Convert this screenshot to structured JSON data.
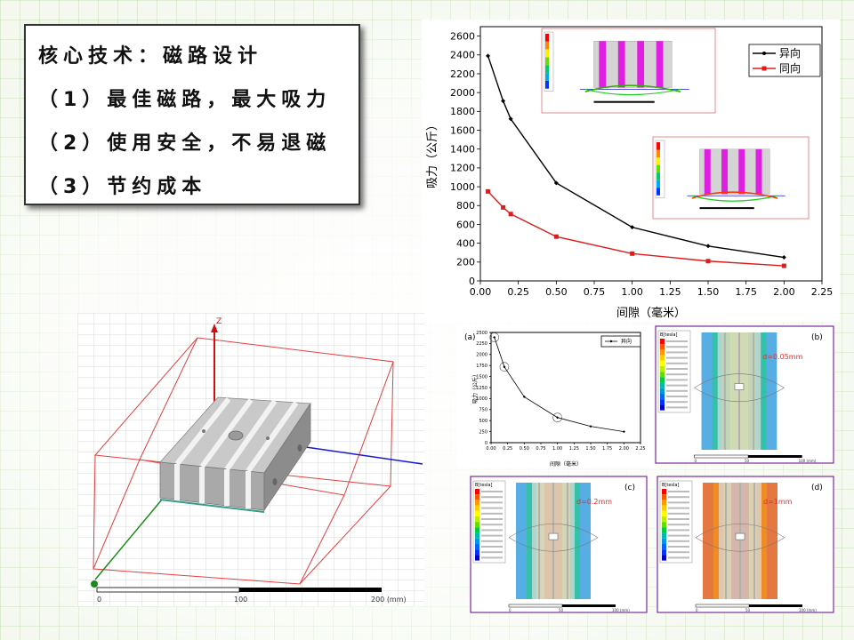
{
  "text_box": {
    "lines": [
      "核心技术：磁路设计",
      "（1）最佳磁路，最大吸力",
      "（2）使用安全，不易退磁",
      "（3）节约成本"
    ]
  },
  "colors": {
    "series_1": "#000000",
    "series_2": "#dd1c1c",
    "axis_blue": "#1a1acc",
    "box_red": "#e04040"
  },
  "chart_data": [
    {
      "type": "line",
      "xlabel": "间隙（毫米）",
      "ylabel": "吸力（公斤）",
      "xlim": [
        0,
        2.25
      ],
      "ylim": [
        0,
        2700
      ],
      "x_ticks": [
        "0.00",
        "0.25",
        "0.50",
        "0.75",
        "1.00",
        "1.25",
        "1.50",
        "1.75",
        "2.00",
        "2.25"
      ],
      "y_ticks": [
        "0",
        "200",
        "400",
        "600",
        "800",
        "1000",
        "1200",
        "1400",
        "1600",
        "1800",
        "2000",
        "2200",
        "2400",
        "2600"
      ],
      "legend_position": "top-right",
      "series": [
        {
          "name": "异向",
          "x": [
            0.05,
            0.15,
            0.2,
            0.5,
            1.0,
            1.5,
            2.0
          ],
          "values": [
            2390,
            1910,
            1720,
            1040,
            570,
            370,
            250
          ]
        },
        {
          "name": "同向",
          "x": [
            0.05,
            0.15,
            0.2,
            0.5,
            1.0,
            1.5,
            2.0
          ],
          "values": [
            950,
            780,
            710,
            470,
            290,
            210,
            160
          ]
        }
      ]
    },
    {
      "type": "line",
      "panel_label": "(a)",
      "xlabel": "间隙（毫米）",
      "ylabel": "吸力（公斤）",
      "xlim": [
        0,
        2.25
      ],
      "ylim": [
        0,
        2500
      ],
      "x_ticks": [
        "0.00",
        "0.25",
        "0.50",
        "0.75",
        "1.00",
        "1.25",
        "1.50",
        "1.75",
        "2.00",
        "2.25"
      ],
      "y_ticks": [
        "0",
        "250",
        "500",
        "750",
        "1000",
        "1250",
        "1500",
        "1750",
        "2000",
        "2250",
        "2500"
      ],
      "legend_position": "top-right",
      "series": [
        {
          "name": "异向",
          "x": [
            0.05,
            0.2,
            0.5,
            1.0,
            1.5,
            2.0
          ],
          "values": [
            2390,
            1720,
            1040,
            570,
            370,
            250
          ]
        }
      ]
    }
  ],
  "field_panels": [
    {
      "label": "(b)",
      "note": "d=0.05mm",
      "legend_title": "B[tesla]"
    },
    {
      "label": "(c)",
      "note": "d=0.2mm",
      "legend_title": "B[tesla]"
    },
    {
      "label": "(d)",
      "note": "d=1mm",
      "legend_title": "B[tesla]"
    }
  ],
  "model_view": {
    "axis_label": "Z",
    "scale_labels": [
      "0",
      "100",
      "200 (mm)"
    ]
  },
  "field_scale_labels": [
    "0",
    "50",
    "100 (mm)"
  ]
}
